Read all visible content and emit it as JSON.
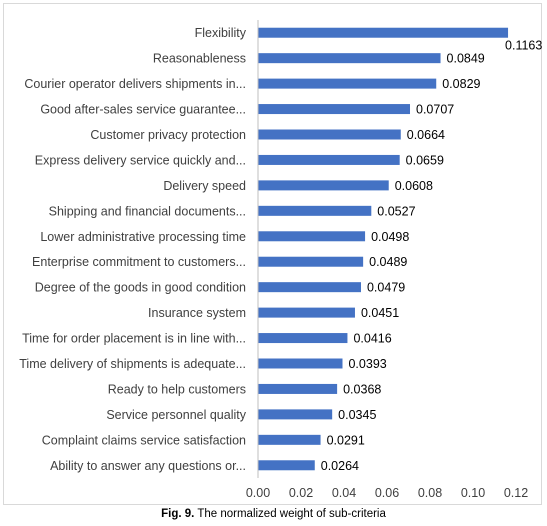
{
  "caption": {
    "prefix": "Fig. 9.",
    "text": " The normalized weight of sub-criteria"
  },
  "chart_data": {
    "type": "bar",
    "orientation": "horizontal",
    "categories": [
      "Flexibility",
      "Reasonableness",
      "Courier operator delivers shipments in...",
      "Good after-sales service guarantee...",
      "Customer privacy protection",
      "Express delivery service quickly and...",
      "Delivery speed",
      "Shipping and financial documents...",
      "Lower administrative processing time",
      "Enterprise commitment to customers...",
      "Degree of the goods in good condition",
      "Insurance system",
      "Time for order placement is in line with...",
      "Time delivery of shipments is adequate...",
      "Ready to help customers",
      "Service personnel quality",
      "Complaint claims service satisfaction",
      "Ability to answer any questions or..."
    ],
    "values": [
      0.1163,
      0.0849,
      0.0829,
      0.0707,
      0.0664,
      0.0659,
      0.0608,
      0.0527,
      0.0498,
      0.0489,
      0.0479,
      0.0451,
      0.0416,
      0.0393,
      0.0368,
      0.0345,
      0.0291,
      0.0264
    ],
    "value_labels": [
      "0.1163",
      "0.0849",
      "0.0829",
      "0.0707",
      "0.0664",
      "0.0659",
      "0.0608",
      "0.0527",
      "0.0498",
      "0.0489",
      "0.0479",
      "0.0451",
      "0.0416",
      "0.0393",
      "0.0368",
      "0.0345",
      "0.0291",
      "0.0264"
    ],
    "x_ticks": [
      "0.00",
      "0.02",
      "0.04",
      "0.06",
      "0.08",
      "0.10",
      "0.12"
    ],
    "xlim": [
      0,
      0.12
    ],
    "title": "",
    "xlabel": "",
    "ylabel": "",
    "grid": false,
    "legend": "none",
    "bar_color": "#4472c4"
  }
}
